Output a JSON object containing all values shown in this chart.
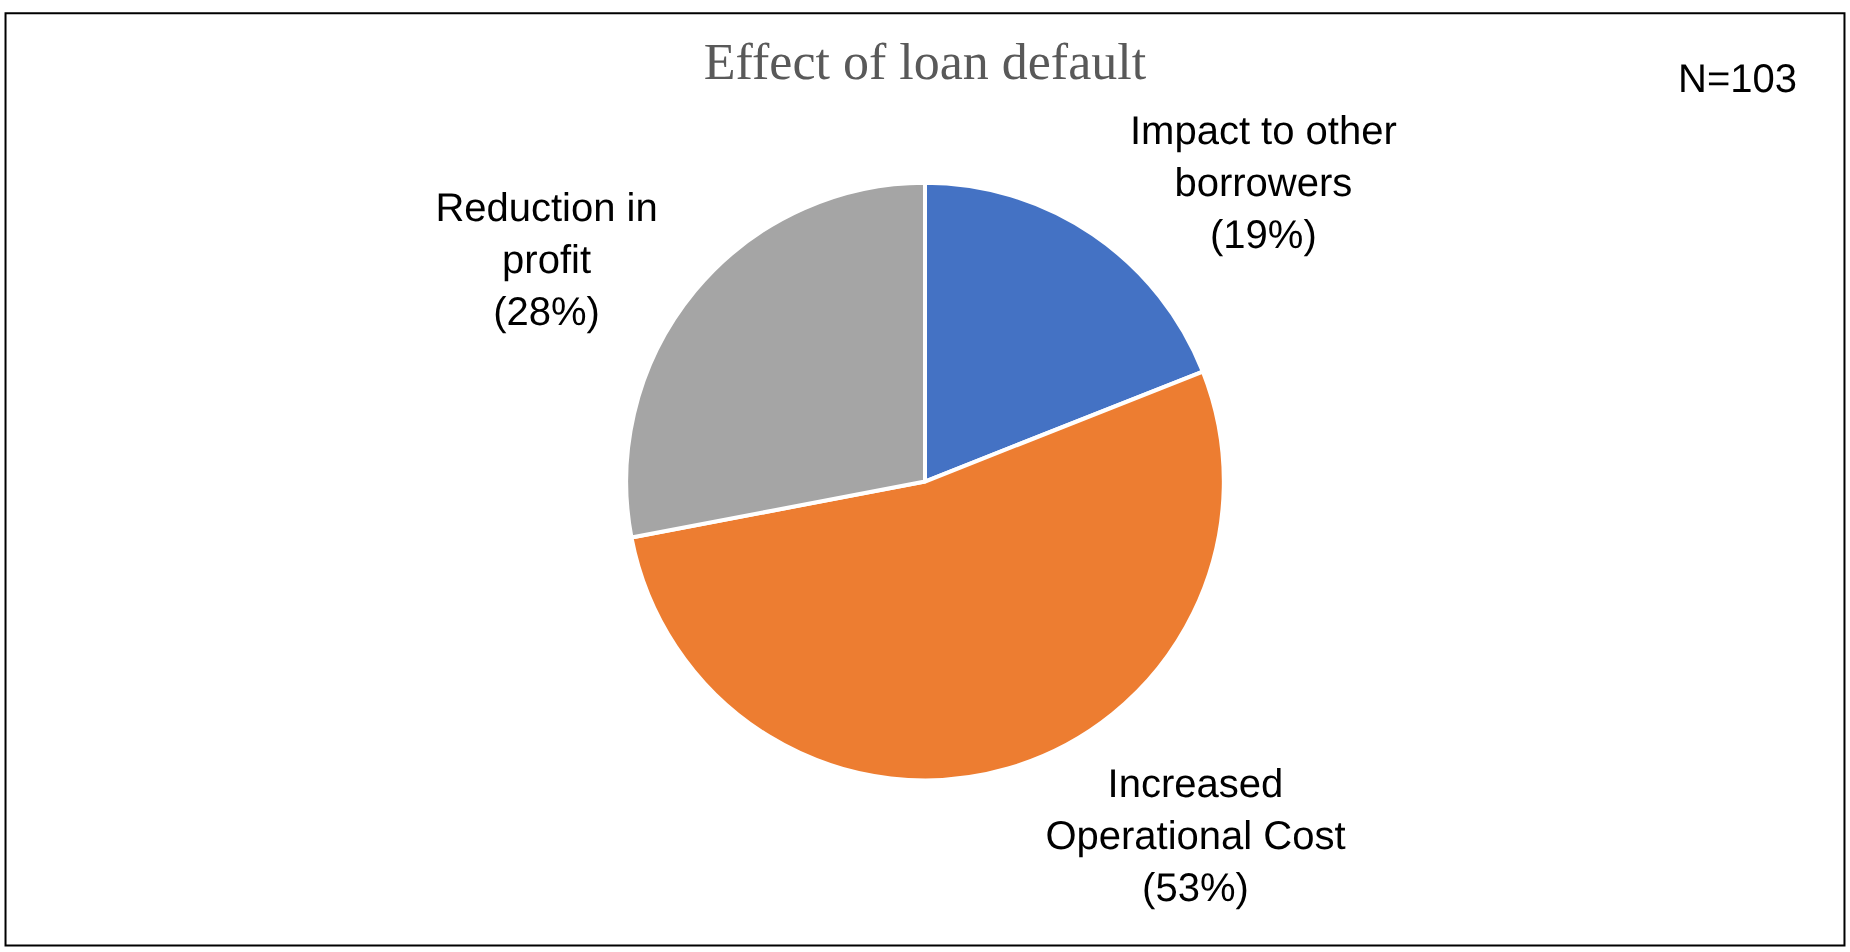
{
  "chart_data": {
    "type": "pie",
    "title": "Effect of loan default",
    "categories": [
      "Impact to other borrowers",
      "Increased Operational Cost",
      "Reduction in profit"
    ],
    "values": [
      19,
      53,
      28
    ],
    "value_labels": [
      "(19%)",
      "(53%)",
      "(28%)"
    ],
    "colors": [
      "#4472c4",
      "#ed7d31",
      "#a5a5a5"
    ],
    "annotations": [
      "N=103"
    ],
    "legend": false
  }
}
